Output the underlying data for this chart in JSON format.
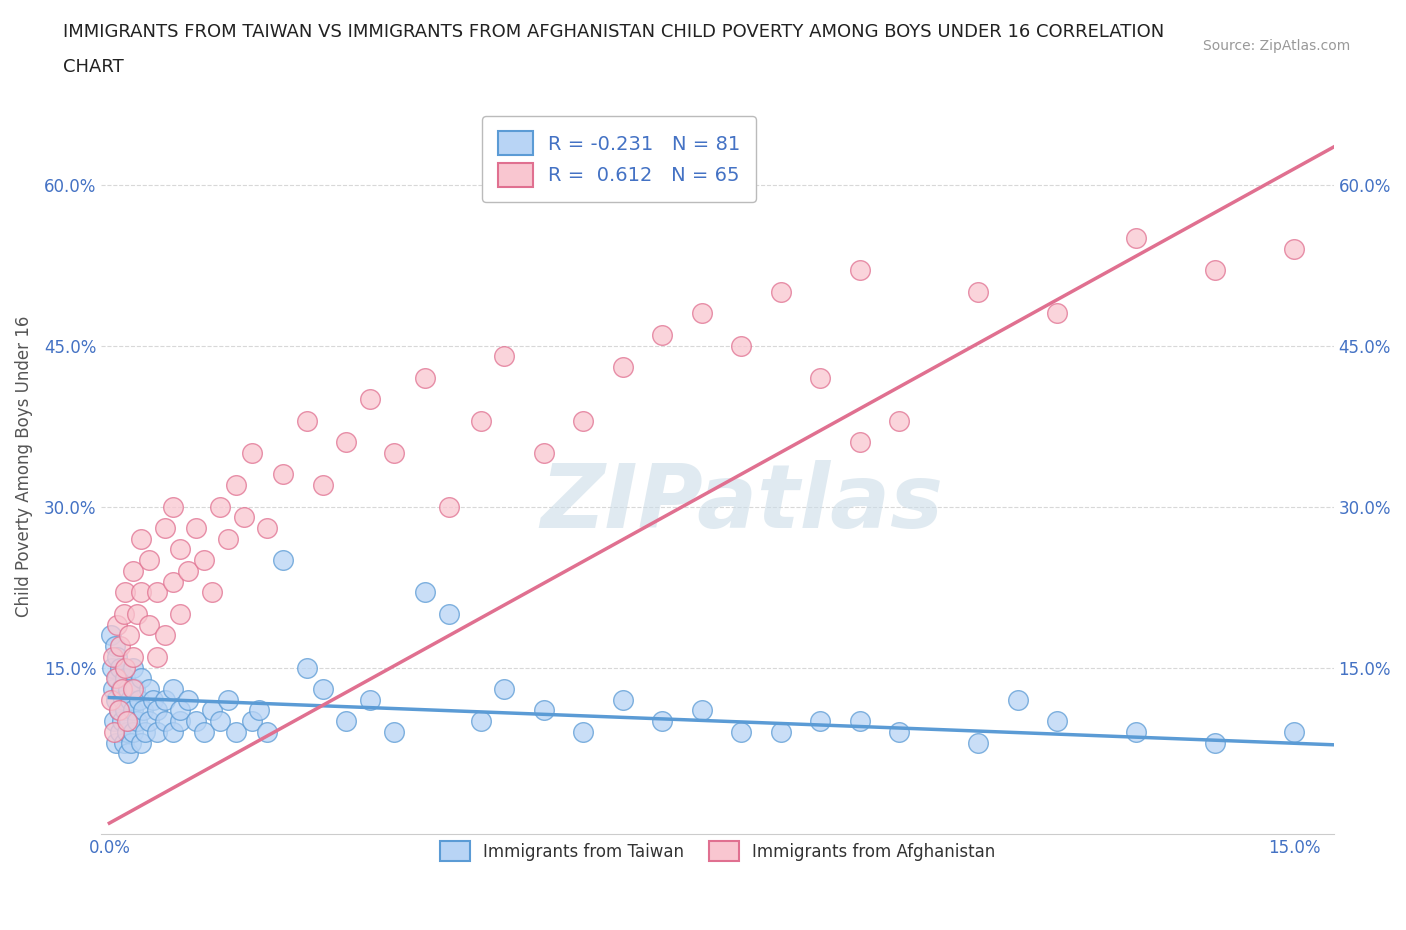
{
  "title_line1": "IMMIGRANTS FROM TAIWAN VS IMMIGRANTS FROM AFGHANISTAN CHILD POVERTY AMONG BOYS UNDER 16 CORRELATION",
  "title_line2": "CHART",
  "source_text": "Source: ZipAtlas.com",
  "ylabel": "Child Poverty Among Boys Under 16",
  "xlim": [
    -0.001,
    0.155
  ],
  "ylim": [
    -0.005,
    0.68
  ],
  "yticks": [
    0.0,
    0.15,
    0.3,
    0.45,
    0.6
  ],
  "ytick_labels": [
    "",
    "15.0%",
    "30.0%",
    "45.0%",
    "60.0%"
  ],
  "xticks": [
    0.0,
    0.03,
    0.06,
    0.09,
    0.12,
    0.15
  ],
  "xtick_labels": [
    "0.0%",
    "",
    "",
    "",
    "",
    "15.0%"
  ],
  "taiwan_color": "#b8d4f5",
  "taiwan_edge": "#5b9bd5",
  "afghanistan_color": "#f9c6d0",
  "afghanistan_edge": "#e07090",
  "trend_taiwan_color": "#5b9bd5",
  "trend_afghanistan_color": "#e07090",
  "r_taiwan": -0.231,
  "n_taiwan": 81,
  "r_afghanistan": 0.612,
  "n_afghanistan": 65,
  "legend_taiwan_label": "Immigrants from Taiwan",
  "legend_afghanistan_label": "Immigrants from Afghanistan",
  "watermark": "ZIPatlas",
  "watermark_color": "#ccdde8",
  "axis_color": "#4472c4",
  "background_color": "#ffffff",
  "grid_color": "#d8d8d8",
  "taiwan_trend_x": [
    0.0,
    0.155
  ],
  "taiwan_trend_y": [
    0.122,
    0.078
  ],
  "afghanistan_trend_x": [
    0.0,
    0.155
  ],
  "afghanistan_trend_y": [
    0.005,
    0.635
  ],
  "taiwan_scatter_x": [
    0.0002,
    0.0003,
    0.0005,
    0.0006,
    0.0007,
    0.0008,
    0.0009,
    0.001,
    0.001,
    0.0012,
    0.0013,
    0.0014,
    0.0015,
    0.0016,
    0.0017,
    0.0018,
    0.002,
    0.002,
    0.0022,
    0.0023,
    0.0024,
    0.0025,
    0.0026,
    0.0027,
    0.003,
    0.003,
    0.003,
    0.0032,
    0.0035,
    0.0038,
    0.004,
    0.004,
    0.0042,
    0.0045,
    0.005,
    0.005,
    0.0055,
    0.006,
    0.006,
    0.007,
    0.007,
    0.008,
    0.008,
    0.009,
    0.009,
    0.01,
    0.011,
    0.012,
    0.013,
    0.014,
    0.015,
    0.016,
    0.018,
    0.019,
    0.02,
    0.022,
    0.025,
    0.027,
    0.03,
    0.033,
    0.036,
    0.04,
    0.043,
    0.047,
    0.05,
    0.055,
    0.06,
    0.065,
    0.07,
    0.075,
    0.08,
    0.09,
    0.1,
    0.11,
    0.12,
    0.13,
    0.14,
    0.15,
    0.115,
    0.095,
    0.085
  ],
  "taiwan_scatter_y": [
    0.18,
    0.15,
    0.13,
    0.1,
    0.17,
    0.12,
    0.08,
    0.14,
    0.16,
    0.11,
    0.09,
    0.15,
    0.13,
    0.1,
    0.12,
    0.08,
    0.14,
    0.11,
    0.09,
    0.13,
    0.07,
    0.1,
    0.12,
    0.08,
    0.15,
    0.11,
    0.09,
    0.13,
    0.1,
    0.12,
    0.08,
    0.14,
    0.11,
    0.09,
    0.13,
    0.1,
    0.12,
    0.09,
    0.11,
    0.1,
    0.12,
    0.09,
    0.13,
    0.1,
    0.11,
    0.12,
    0.1,
    0.09,
    0.11,
    0.1,
    0.12,
    0.09,
    0.1,
    0.11,
    0.09,
    0.25,
    0.15,
    0.13,
    0.1,
    0.12,
    0.09,
    0.22,
    0.2,
    0.1,
    0.13,
    0.11,
    0.09,
    0.12,
    0.1,
    0.11,
    0.09,
    0.1,
    0.09,
    0.08,
    0.1,
    0.09,
    0.08,
    0.09,
    0.12,
    0.1,
    0.09
  ],
  "afghanistan_scatter_x": [
    0.0002,
    0.0004,
    0.0006,
    0.0008,
    0.001,
    0.0012,
    0.0014,
    0.0016,
    0.0018,
    0.002,
    0.002,
    0.0022,
    0.0025,
    0.003,
    0.003,
    0.003,
    0.0035,
    0.004,
    0.004,
    0.005,
    0.005,
    0.006,
    0.006,
    0.007,
    0.007,
    0.008,
    0.008,
    0.009,
    0.009,
    0.01,
    0.011,
    0.012,
    0.013,
    0.014,
    0.015,
    0.016,
    0.017,
    0.018,
    0.02,
    0.022,
    0.025,
    0.027,
    0.03,
    0.033,
    0.036,
    0.04,
    0.043,
    0.047,
    0.05,
    0.055,
    0.06,
    0.065,
    0.07,
    0.095,
    0.075,
    0.08,
    0.085,
    0.09,
    0.095,
    0.1,
    0.11,
    0.12,
    0.13,
    0.14,
    0.15
  ],
  "afghanistan_scatter_y": [
    0.12,
    0.16,
    0.09,
    0.14,
    0.19,
    0.11,
    0.17,
    0.13,
    0.2,
    0.15,
    0.22,
    0.1,
    0.18,
    0.24,
    0.13,
    0.16,
    0.2,
    0.22,
    0.27,
    0.19,
    0.25,
    0.16,
    0.22,
    0.18,
    0.28,
    0.23,
    0.3,
    0.2,
    0.26,
    0.24,
    0.28,
    0.25,
    0.22,
    0.3,
    0.27,
    0.32,
    0.29,
    0.35,
    0.28,
    0.33,
    0.38,
    0.32,
    0.36,
    0.4,
    0.35,
    0.42,
    0.3,
    0.38,
    0.44,
    0.35,
    0.38,
    0.43,
    0.46,
    0.36,
    0.48,
    0.45,
    0.5,
    0.42,
    0.52,
    0.38,
    0.5,
    0.48,
    0.55,
    0.52,
    0.54
  ]
}
